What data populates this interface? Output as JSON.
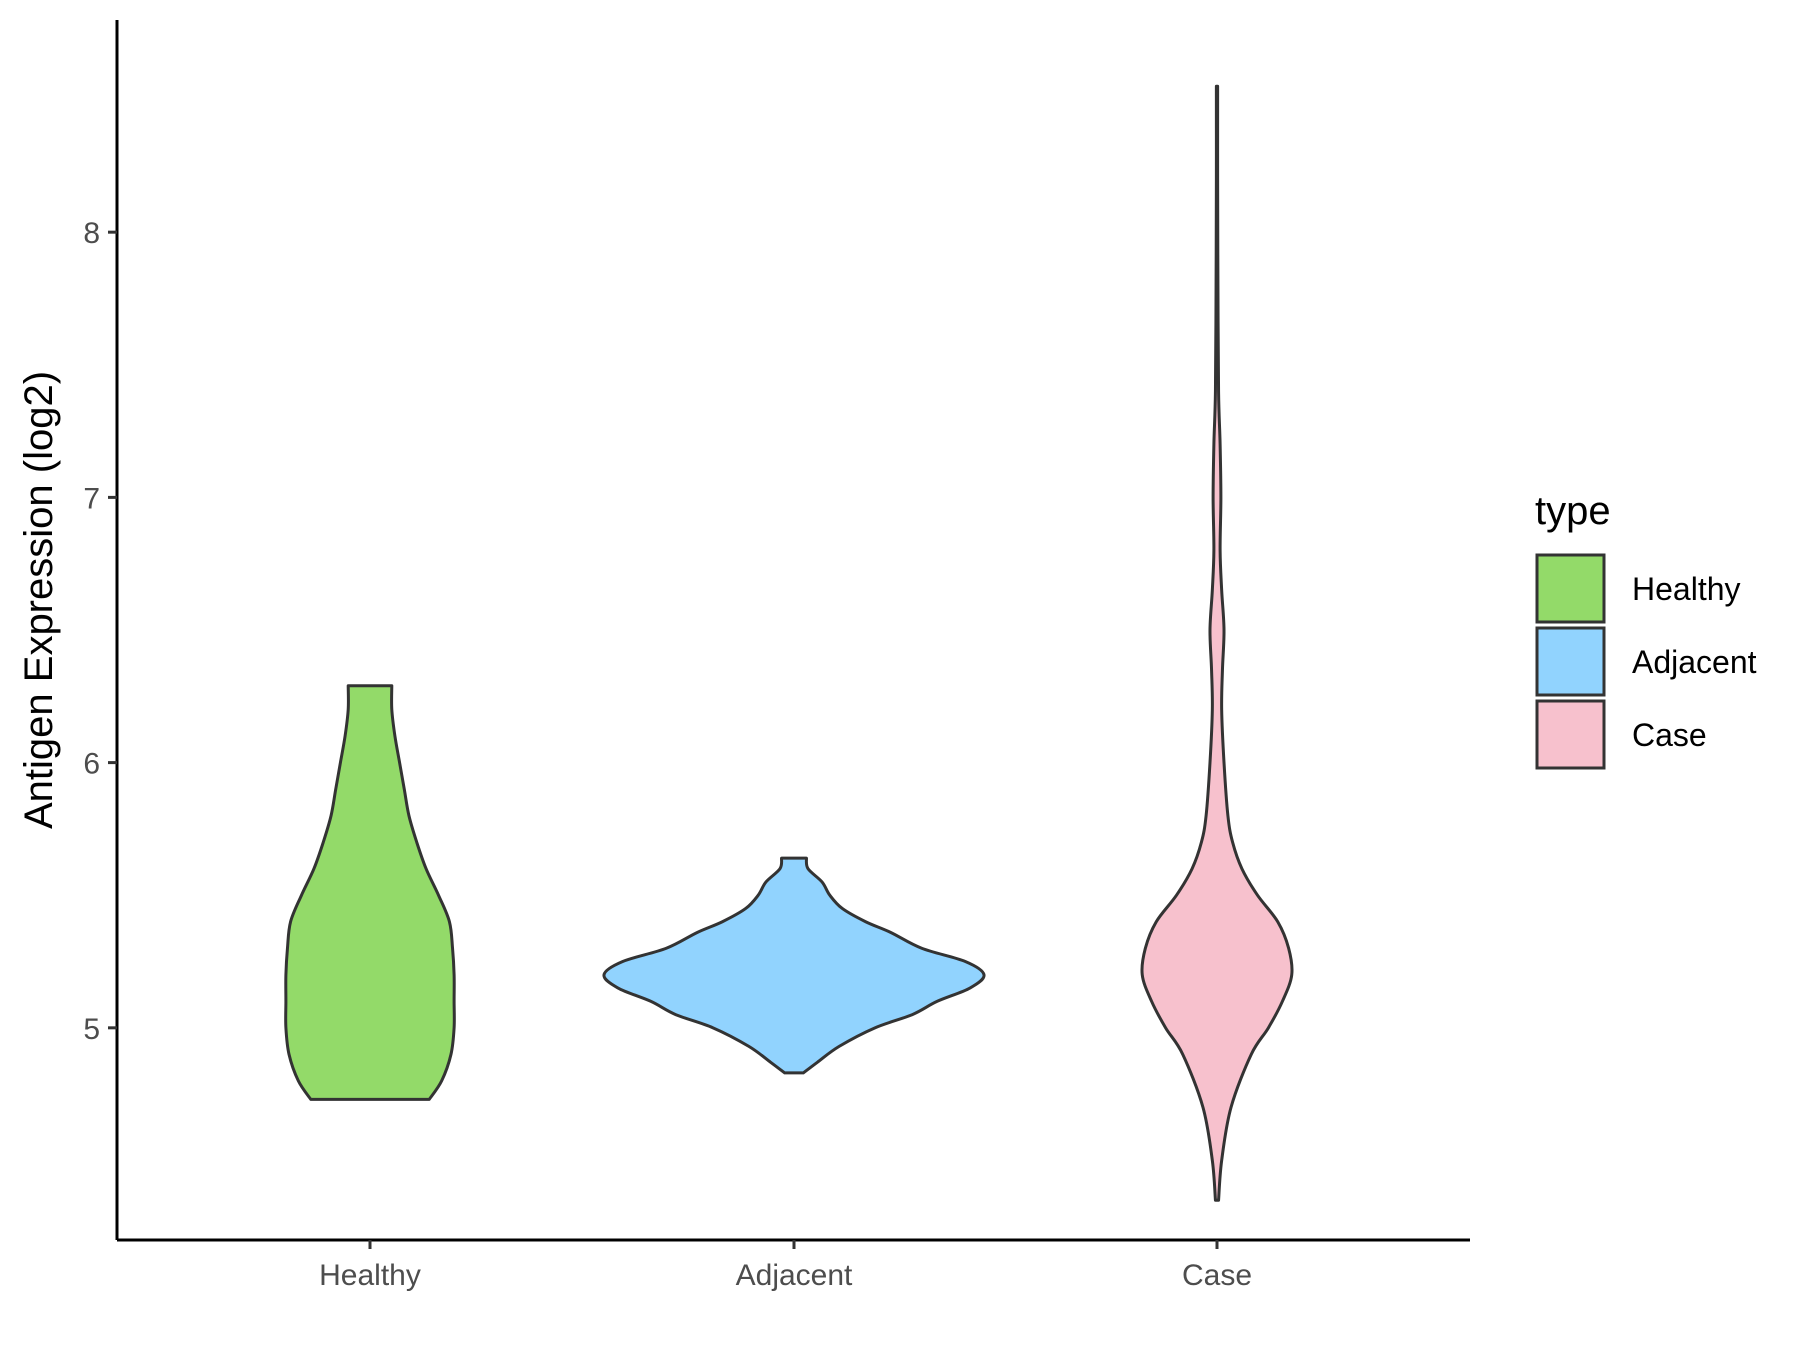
{
  "chart_data": {
    "type": "violin",
    "title": "",
    "xlabel": "",
    "ylabel": "Antigen Expression (log2)",
    "ylim": [
      4.2,
      8.8
    ],
    "yticks": [
      5,
      6,
      7,
      8
    ],
    "grid": false,
    "legend": {
      "title": "type",
      "placement": "right",
      "entries": [
        {
          "label": "Healthy",
          "color": "#93DA69"
        },
        {
          "label": "Adjacent",
          "color": "#91D3FE"
        },
        {
          "label": "Case",
          "color": "#F7C1CD"
        }
      ]
    },
    "categories": [
      "Healthy",
      "Adjacent",
      "Case"
    ],
    "series": [
      {
        "name": "Healthy",
        "color": "#93DA69",
        "min": 4.73,
        "max": 6.29,
        "density": [
          [
            4.73,
            0.38
          ],
          [
            4.8,
            0.46
          ],
          [
            4.9,
            0.52
          ],
          [
            5.0,
            0.54
          ],
          [
            5.1,
            0.54
          ],
          [
            5.2,
            0.54
          ],
          [
            5.3,
            0.53
          ],
          [
            5.4,
            0.51
          ],
          [
            5.5,
            0.44
          ],
          [
            5.6,
            0.36
          ],
          [
            5.7,
            0.3
          ],
          [
            5.8,
            0.25
          ],
          [
            5.9,
            0.22
          ],
          [
            6.0,
            0.19
          ],
          [
            6.1,
            0.16
          ],
          [
            6.2,
            0.14
          ],
          [
            6.29,
            0.14
          ]
        ]
      },
      {
        "name": "Adjacent",
        "color": "#91D3FE",
        "min": 4.83,
        "max": 5.64,
        "density": [
          [
            4.83,
            0.06
          ],
          [
            4.87,
            0.15
          ],
          [
            4.93,
            0.29
          ],
          [
            5.0,
            0.52
          ],
          [
            5.05,
            0.76
          ],
          [
            5.1,
            0.92
          ],
          [
            5.15,
            1.13
          ],
          [
            5.2,
            1.22
          ],
          [
            5.25,
            1.1
          ],
          [
            5.3,
            0.82
          ],
          [
            5.36,
            0.62
          ],
          [
            5.4,
            0.46
          ],
          [
            5.45,
            0.31
          ],
          [
            5.5,
            0.23
          ],
          [
            5.55,
            0.18
          ],
          [
            5.6,
            0.09
          ],
          [
            5.64,
            0.08
          ]
        ]
      },
      {
        "name": "Case",
        "color": "#F7C1CD",
        "min": 4.35,
        "max": 8.55,
        "density": [
          [
            4.35,
            0.01
          ],
          [
            4.5,
            0.03
          ],
          [
            4.7,
            0.09
          ],
          [
            4.9,
            0.22
          ],
          [
            5.0,
            0.33
          ],
          [
            5.1,
            0.42
          ],
          [
            5.2,
            0.48
          ],
          [
            5.3,
            0.46
          ],
          [
            5.4,
            0.39
          ],
          [
            5.5,
            0.26
          ],
          [
            5.6,
            0.16
          ],
          [
            5.7,
            0.1
          ],
          [
            5.8,
            0.07
          ],
          [
            6.0,
            0.045
          ],
          [
            6.2,
            0.03
          ],
          [
            6.35,
            0.035
          ],
          [
            6.5,
            0.045
          ],
          [
            6.65,
            0.03
          ],
          [
            6.8,
            0.02
          ],
          [
            7.0,
            0.025
          ],
          [
            7.2,
            0.02
          ],
          [
            7.4,
            0.01
          ],
          [
            7.8,
            0.006
          ],
          [
            8.2,
            0.004
          ],
          [
            8.55,
            0.004
          ]
        ]
      }
    ]
  }
}
